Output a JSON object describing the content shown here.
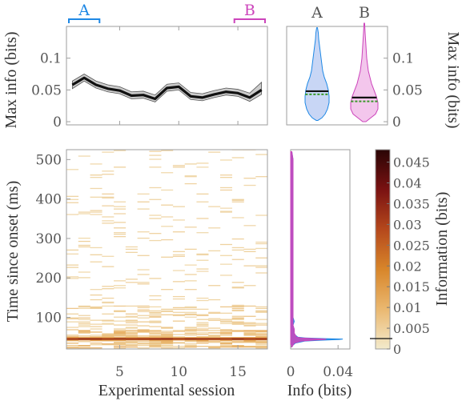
{
  "chart_data": [
    {
      "type": "line",
      "panel": "top-left",
      "ylabel": "Max info (bits)",
      "xlim": [
        0.5,
        17.5
      ],
      "ylim": [
        -0.005,
        0.15
      ],
      "yticks": [
        0,
        0.05,
        0.1
      ],
      "ytick_labels": [
        "0",
        "0.05",
        "0.1"
      ],
      "x": [
        1,
        2,
        3,
        4,
        5,
        6,
        7,
        8,
        9,
        10,
        11,
        12,
        13,
        14,
        15,
        16,
        17
      ],
      "series": [
        {
          "values": [
            0.058,
            0.069,
            0.058,
            0.052,
            0.049,
            0.041,
            0.042,
            0.036,
            0.053,
            0.055,
            0.04,
            0.038,
            0.043,
            0.047,
            0.045,
            0.038,
            0.05
          ],
          "lower": [
            0.052,
            0.064,
            0.053,
            0.047,
            0.044,
            0.036,
            0.037,
            0.031,
            0.048,
            0.05,
            0.035,
            0.033,
            0.038,
            0.042,
            0.04,
            0.032,
            0.043
          ],
          "upper": [
            0.064,
            0.075,
            0.064,
            0.058,
            0.055,
            0.047,
            0.048,
            0.042,
            0.059,
            0.061,
            0.046,
            0.044,
            0.049,
            0.053,
            0.051,
            0.045,
            0.062
          ],
          "color": "#111111",
          "band_color": "#cccccc"
        }
      ],
      "brackets": [
        {
          "label": "A",
          "from": 0.5,
          "to": 3.5,
          "color": "#1e88e5"
        },
        {
          "label": "B",
          "from": 14.5,
          "to": 17.5,
          "color": "#cc44bb"
        }
      ]
    },
    {
      "type": "violin",
      "panel": "top-right",
      "ylabel": "Max info (bits)",
      "ylim": [
        -0.005,
        0.15
      ],
      "yticks": [
        0,
        0.05,
        0.1
      ],
      "ytick_labels": [
        "0",
        "0.05",
        "0.1"
      ],
      "categories": [
        "A",
        "B"
      ],
      "series": [
        {
          "name": "A",
          "color": "#1e88e5",
          "fill": "#c8d6f5",
          "median": 0.048,
          "mean": 0.043,
          "min": 0.002,
          "max": 0.148
        },
        {
          "name": "B",
          "color": "#cc44bb",
          "fill": "#f3c6ec",
          "median": 0.038,
          "mean": 0.032,
          "min": 0.0,
          "max": 0.155
        }
      ]
    },
    {
      "type": "heatmap",
      "panel": "bottom-left",
      "xlabel": "Experimental session",
      "ylabel": "Time since onset (ms)",
      "xlim": [
        0.5,
        17.5
      ],
      "ylim": [
        20,
        525
      ],
      "xticks": [
        5,
        10,
        15
      ],
      "xtick_labels": [
        "5",
        "10",
        "15"
      ],
      "yticks": [
        100,
        200,
        300,
        400,
        500
      ],
      "ytick_labels": [
        "100",
        "200",
        "300",
        "400",
        "500"
      ],
      "peak_time_ms": 45,
      "peak_value": 0.045
    },
    {
      "type": "area",
      "panel": "bottom-middle",
      "xlabel": "Info (bits)",
      "xlim": [
        0,
        0.05
      ],
      "xticks": [
        0,
        0.04
      ],
      "xtick_labels": [
        "0",
        "0.04"
      ],
      "ylim": [
        20,
        525
      ],
      "x": [
        25,
        30,
        35,
        40,
        42,
        44,
        45,
        46,
        48,
        50,
        55,
        60,
        70,
        80,
        90,
        100,
        120,
        150,
        200,
        250,
        300,
        350,
        400,
        450,
        500,
        520
      ],
      "series": [
        {
          "name": "A",
          "color": "#1e88e5",
          "values": [
            0.001,
            0.002,
            0.004,
            0.012,
            0.025,
            0.041,
            0.044,
            0.03,
            0.012,
            0.006,
            0.004,
            0.003,
            0.003,
            0.002,
            0.003,
            0.002,
            0.002,
            0.002,
            0.002,
            0.002,
            0.002,
            0.002,
            0.002,
            0.002,
            0.002,
            0.001
          ]
        },
        {
          "name": "B",
          "color": "#cc44bb",
          "values": [
            0.001,
            0.002,
            0.003,
            0.009,
            0.018,
            0.028,
            0.03,
            0.021,
            0.009,
            0.005,
            0.004,
            0.003,
            0.003,
            0.002,
            0.002,
            0.002,
            0.002,
            0.002,
            0.002,
            0.002,
            0.002,
            0.002,
            0.002,
            0.002,
            0.002,
            0.001
          ]
        }
      ]
    },
    {
      "type": "colorbar",
      "panel": "bottom-right",
      "label": "Information (bits)",
      "range": [
        0,
        0.048
      ],
      "ticks": [
        0,
        0.005,
        0.01,
        0.015,
        0.02,
        0.025,
        0.03,
        0.035,
        0.04,
        0.045
      ],
      "tick_labels": [
        "0",
        "0.005",
        "0.01",
        "0.015",
        "0.02",
        "0.025",
        "0.03",
        "0.035",
        "0.04",
        "0.045"
      ],
      "threshold": 0.0025,
      "colors": [
        "#f3eacc",
        "#eab870",
        "#d8862a",
        "#b5481c",
        "#7a1212",
        "#2a0505"
      ]
    }
  ]
}
